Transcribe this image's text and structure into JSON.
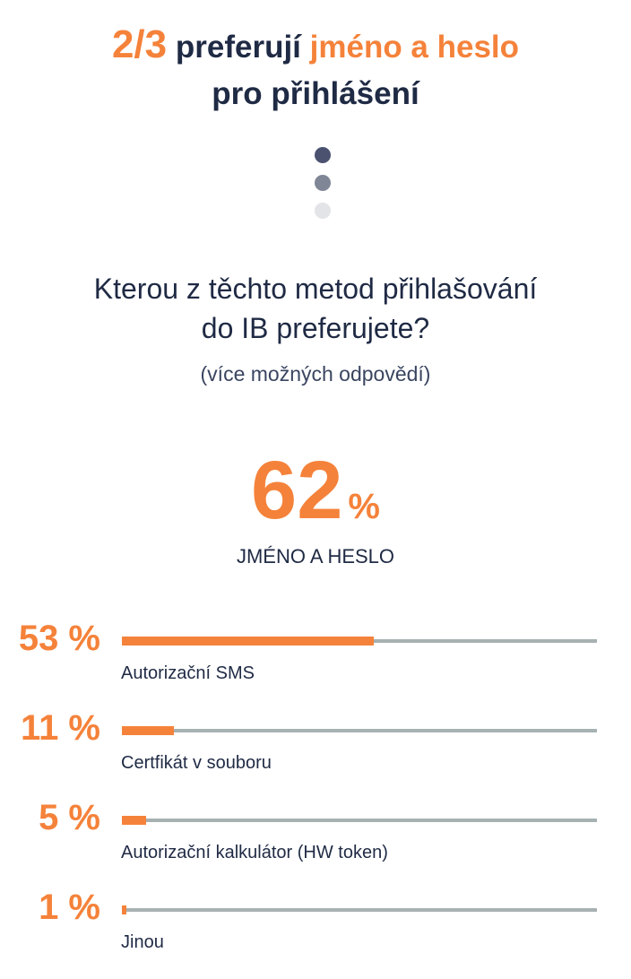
{
  "headline": {
    "fraction": "2/3",
    "part1": "preferují",
    "accent": "jméno a heslo",
    "line2": "pro přihlášení"
  },
  "colors": {
    "accent": "#f5823a",
    "text": "#1f2a44",
    "track": "#a7b1b2",
    "dots": [
      "#4a5270",
      "#7f8696",
      "#e3e4e8"
    ]
  },
  "question": {
    "line1": "Kterou z těchto metod přihlašování",
    "line2": "do IB preferujete?",
    "note": "(více možných odpovědí)"
  },
  "chart_data": {
    "type": "bar",
    "highlight": {
      "value": 62,
      "unit": "%",
      "label": "JMÉNO A HESLO"
    },
    "bars": [
      {
        "value": 53,
        "display": "53 %",
        "label": "Autorizační SMS"
      },
      {
        "value": 11,
        "display": "11 %",
        "label": "Certfikát v souboru"
      },
      {
        "value": 5,
        "display": "5 %",
        "label": "Autorizační kalkulátor (HW token)"
      },
      {
        "value": 1,
        "display": "1 %",
        "label": "Jinou"
      }
    ],
    "xlim": [
      0,
      100
    ]
  }
}
